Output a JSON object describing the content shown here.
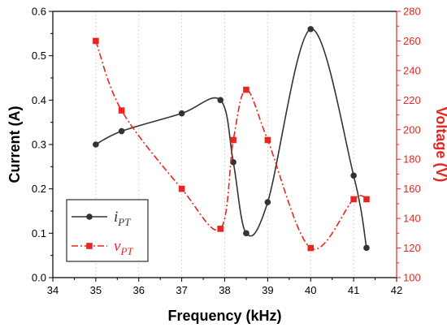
{
  "chart_data": {
    "type": "line",
    "xlabel": "Frequency (kHz)",
    "ylabel_left": "Current (A)",
    "ylabel_right": "Voltage (V)",
    "xlim": [
      34,
      42
    ],
    "xticks": [
      34,
      35,
      36,
      37,
      38,
      39,
      40,
      41,
      42
    ],
    "ylim_left": [
      0,
      0.6
    ],
    "yticks_left": [
      0.0,
      0.1,
      0.2,
      0.3,
      0.4,
      0.5,
      0.6
    ],
    "ylim_right": [
      100,
      280
    ],
    "yticks_right": [
      100,
      120,
      140,
      160,
      180,
      200,
      220,
      240,
      260,
      280
    ],
    "grid": "vertical-dotted",
    "legend_position": "bottom-left",
    "colors": {
      "current": "#333333",
      "voltage": "#e8261f"
    },
    "series": [
      {
        "name": "i",
        "subscript": "PT",
        "axis": "left",
        "marker": "circle",
        "line": "solid",
        "x": [
          35,
          35.6,
          37,
          37.9,
          38.2,
          38.5,
          39,
          40,
          41,
          41.3
        ],
        "y": [
          0.3,
          0.33,
          0.37,
          0.4,
          0.26,
          0.1,
          0.17,
          0.56,
          0.23,
          0.067
        ]
      },
      {
        "name": "v",
        "subscript": "PT",
        "axis": "right",
        "marker": "square",
        "line": "dash-dot",
        "x": [
          35,
          35.6,
          37,
          37.9,
          38.2,
          38.5,
          39,
          40,
          41,
          41.3
        ],
        "y": [
          260,
          213,
          160,
          133,
          193,
          227,
          193,
          120,
          153,
          153
        ]
      }
    ]
  }
}
